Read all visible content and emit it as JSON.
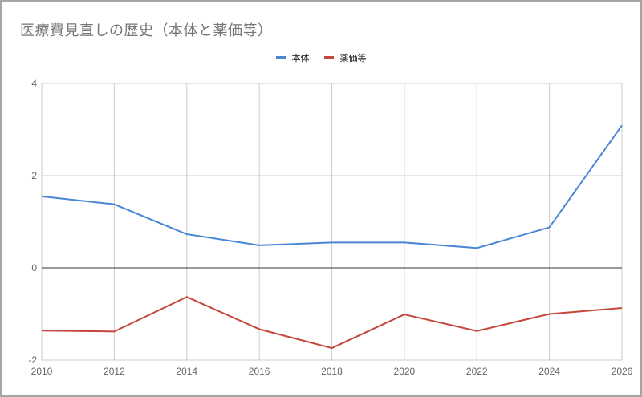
{
  "chart_data": {
    "type": "line",
    "title": "医療費見直しの歴史（本体と薬価等）",
    "xlabel": "",
    "ylabel": "",
    "x": [
      2010,
      2012,
      2014,
      2016,
      2018,
      2020,
      2022,
      2024,
      2026
    ],
    "series": [
      {
        "name": "本体",
        "color": "#4a86d4",
        "values": [
          1.55,
          1.38,
          0.73,
          0.49,
          0.55,
          0.55,
          0.43,
          0.88,
          3.09
        ]
      },
      {
        "name": "薬価等",
        "color": "#c5473b",
        "values": [
          -1.36,
          -1.38,
          -0.63,
          -1.33,
          -1.74,
          -1.01,
          -1.37,
          -1.0,
          -0.87
        ]
      }
    ],
    "xlim": [
      2010,
      2026
    ],
    "ylim": [
      -2,
      4
    ],
    "yticks": [
      -2,
      0,
      2,
      4
    ],
    "xticks": [
      2010,
      2012,
      2014,
      2016,
      2018,
      2020,
      2022,
      2024,
      2026
    ],
    "grid": true,
    "legend_position": "top"
  },
  "title": "医療費見直しの歴史（本体と薬価等）",
  "legend": [
    {
      "label": "本体",
      "color": "#4a86d4"
    },
    {
      "label": "薬価等",
      "color": "#c5473b"
    }
  ]
}
